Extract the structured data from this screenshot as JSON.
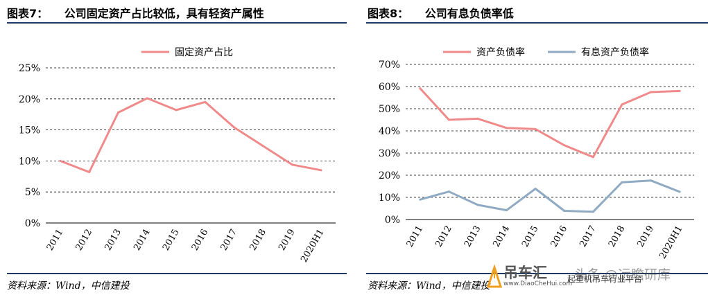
{
  "left": {
    "figure_number": "图表7：",
    "figure_title": "公司固定资产占比较低，具有轻资产属性",
    "source": "资料来源：Wind，中信建投"
  },
  "right": {
    "figure_number": "图表8：",
    "figure_title": "公司有息负债率低",
    "source": "资料来源：Wind，中信建投"
  },
  "watermark": {
    "brand": "吊车汇",
    "site": "www.DiaoCheHui.com",
    "slogan": "起重机吊车行业平台",
    "overlay": "头条 @远瞻研库"
  },
  "chart_data": [
    {
      "type": "line",
      "categories": [
        "2011",
        "2012",
        "2013",
        "2014",
        "2015",
        "2016",
        "2017",
        "2018",
        "2019",
        "2020H1"
      ],
      "series": [
        {
          "name": "固定资产占比",
          "values": [
            10.0,
            8.2,
            17.8,
            20.1,
            18.2,
            19.5,
            15.4,
            12.4,
            9.4,
            8.5
          ],
          "color": "#f08a8a"
        }
      ],
      "yticks": [
        "0%",
        "5%",
        "10%",
        "15%",
        "20%",
        "25%"
      ],
      "ylim": [
        0,
        25
      ],
      "grid": "dashed horizontal",
      "legend": "top-center"
    },
    {
      "type": "line",
      "categories": [
        "2011",
        "2012",
        "2013",
        "2014",
        "2015",
        "2016",
        "2017",
        "2018",
        "2019",
        "2020H1"
      ],
      "series": [
        {
          "name": "资产负债率",
          "values": [
            59.2,
            45.0,
            45.5,
            41.3,
            40.8,
            33.5,
            28.2,
            51.9,
            57.5,
            58.0
          ],
          "color": "#f08a8a"
        },
        {
          "name": "有息资产负债率",
          "values": [
            9.0,
            12.6,
            6.6,
            4.2,
            13.9,
            3.9,
            3.5,
            16.8,
            17.6,
            12.5
          ],
          "color": "#8faac2"
        }
      ],
      "yticks": [
        "0%",
        "10%",
        "20%",
        "30%",
        "40%",
        "50%",
        "60%",
        "70%"
      ],
      "ylim": [
        0,
        70
      ],
      "grid": "dashed horizontal",
      "legend": "top-center"
    }
  ]
}
